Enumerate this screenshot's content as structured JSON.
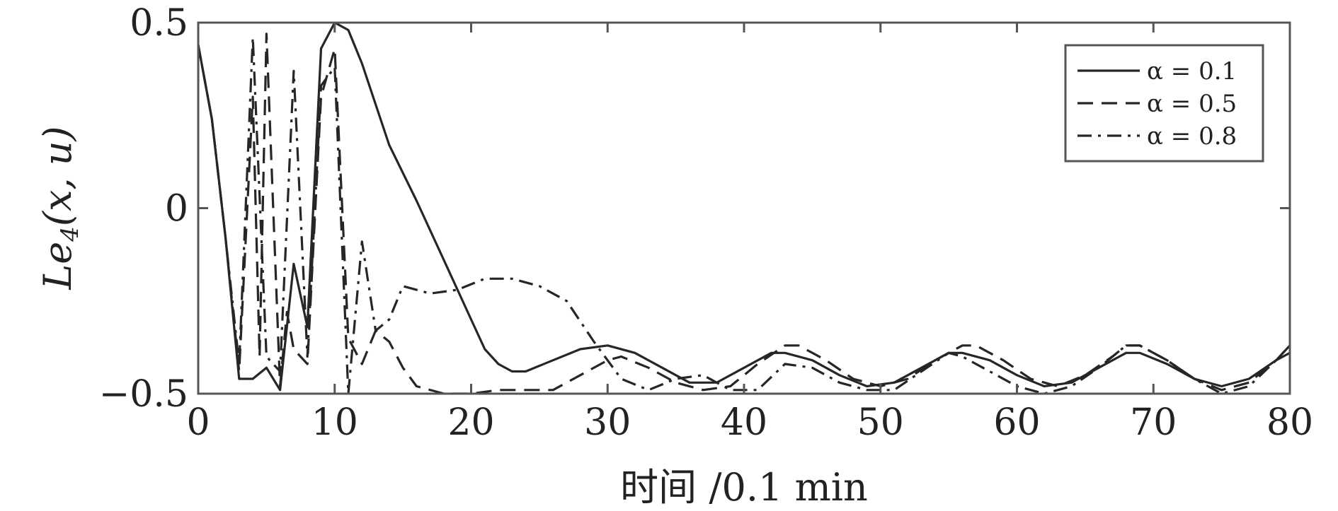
{
  "chart_data": {
    "type": "line",
    "xlabel": "时间 /0.1 min",
    "ylabel": "Le4(x, u)",
    "ylabel_parts": {
      "pre": "Le",
      "sub": "4",
      "args": "(x, u)"
    },
    "xlim": [
      0,
      80
    ],
    "ylim": [
      -0.5,
      0.5
    ],
    "x_ticks": [
      0,
      10,
      20,
      30,
      40,
      50,
      60,
      70,
      80
    ],
    "y_ticks": [
      -0.5,
      0,
      0.5
    ],
    "y_tick_labels": [
      "−0.5",
      "0",
      "0.5"
    ],
    "legend_position": "top-right",
    "grid": false,
    "series": [
      {
        "name": "α = 0.1",
        "dash": "solid",
        "points": [
          [
            0,
            0.44
          ],
          [
            1,
            0.24
          ],
          [
            2,
            -0.08
          ],
          [
            3,
            -0.46
          ],
          [
            4,
            -0.46
          ],
          [
            5,
            -0.43
          ],
          [
            6,
            -0.49
          ],
          [
            7,
            -0.15
          ],
          [
            8,
            -0.32
          ],
          [
            9,
            0.43
          ],
          [
            10,
            0.5
          ],
          [
            11,
            0.48
          ],
          [
            12,
            0.39
          ],
          [
            14,
            0.17
          ],
          [
            16,
            0.02
          ],
          [
            18,
            -0.14
          ],
          [
            20,
            -0.3
          ],
          [
            21,
            -0.38
          ],
          [
            22,
            -0.42
          ],
          [
            23,
            -0.44
          ],
          [
            24,
            -0.44
          ],
          [
            26,
            -0.41
          ],
          [
            28,
            -0.38
          ],
          [
            30,
            -0.37
          ],
          [
            32,
            -0.39
          ],
          [
            34,
            -0.43
          ],
          [
            36,
            -0.47
          ],
          [
            38,
            -0.47
          ],
          [
            40,
            -0.43
          ],
          [
            42,
            -0.39
          ],
          [
            43,
            -0.39
          ],
          [
            45,
            -0.41
          ],
          [
            47,
            -0.45
          ],
          [
            49,
            -0.48
          ],
          [
            51,
            -0.47
          ],
          [
            53,
            -0.43
          ],
          [
            55,
            -0.39
          ],
          [
            56,
            -0.39
          ],
          [
            58,
            -0.41
          ],
          [
            60,
            -0.45
          ],
          [
            62,
            -0.48
          ],
          [
            64,
            -0.47
          ],
          [
            66,
            -0.43
          ],
          [
            68,
            -0.39
          ],
          [
            69,
            -0.39
          ],
          [
            71,
            -0.42
          ],
          [
            73,
            -0.46
          ],
          [
            75,
            -0.48
          ],
          [
            77,
            -0.46
          ],
          [
            79,
            -0.41
          ],
          [
            80,
            -0.39
          ]
        ]
      },
      {
        "name": "α = 0.5",
        "dash": "dashed",
        "points": [
          [
            0,
            0.44
          ],
          [
            1,
            0.24
          ],
          [
            2,
            -0.08
          ],
          [
            3,
            -0.44
          ],
          [
            4,
            0.3
          ],
          [
            4.5,
            -0.4
          ],
          [
            5,
            0.47
          ],
          [
            6,
            -0.48
          ],
          [
            6.5,
            -0.28
          ],
          [
            7,
            -0.38
          ],
          [
            8,
            -0.42
          ],
          [
            9,
            0.3
          ],
          [
            10,
            0.43
          ],
          [
            11,
            -0.35
          ],
          [
            12,
            -0.42
          ],
          [
            13,
            -0.33
          ],
          [
            14,
            -0.36
          ],
          [
            15,
            -0.43
          ],
          [
            16,
            -0.48
          ],
          [
            18,
            -0.5
          ],
          [
            20,
            -0.5
          ],
          [
            22,
            -0.49
          ],
          [
            24,
            -0.49
          ],
          [
            26,
            -0.49
          ],
          [
            28,
            -0.45
          ],
          [
            30,
            -0.41
          ],
          [
            31,
            -0.4
          ],
          [
            33,
            -0.43
          ],
          [
            35,
            -0.47
          ],
          [
            37,
            -0.49
          ],
          [
            39,
            -0.48
          ],
          [
            41,
            -0.42
          ],
          [
            43,
            -0.37
          ],
          [
            44,
            -0.37
          ],
          [
            46,
            -0.41
          ],
          [
            48,
            -0.46
          ],
          [
            50,
            -0.48
          ],
          [
            52,
            -0.46
          ],
          [
            54,
            -0.41
          ],
          [
            56,
            -0.37
          ],
          [
            57,
            -0.37
          ],
          [
            59,
            -0.41
          ],
          [
            61,
            -0.46
          ],
          [
            63,
            -0.48
          ],
          [
            65,
            -0.45
          ],
          [
            67,
            -0.4
          ],
          [
            68,
            -0.37
          ],
          [
            69,
            -0.37
          ],
          [
            71,
            -0.41
          ],
          [
            73,
            -0.46
          ],
          [
            75,
            -0.49
          ],
          [
            77,
            -0.47
          ],
          [
            79,
            -0.41
          ],
          [
            80,
            -0.37
          ]
        ]
      },
      {
        "name": "α = 0.8",
        "dash": "dashdot",
        "points": [
          [
            0,
            0.44
          ],
          [
            1,
            0.24
          ],
          [
            2,
            -0.08
          ],
          [
            3,
            -0.42
          ],
          [
            4,
            0.46
          ],
          [
            5,
            -0.4
          ],
          [
            6,
            -0.44
          ],
          [
            7,
            0.37
          ],
          [
            8,
            -0.4
          ],
          [
            9,
            0.33
          ],
          [
            10,
            0.38
          ],
          [
            11,
            -0.5
          ],
          [
            12,
            -0.09
          ],
          [
            13,
            -0.33
          ],
          [
            14,
            -0.3
          ],
          [
            15,
            -0.21
          ],
          [
            17,
            -0.23
          ],
          [
            19,
            -0.22
          ],
          [
            21,
            -0.19
          ],
          [
            23,
            -0.19
          ],
          [
            25,
            -0.21
          ],
          [
            27,
            -0.25
          ],
          [
            29,
            -0.36
          ],
          [
            31,
            -0.46
          ],
          [
            33,
            -0.49
          ],
          [
            35,
            -0.46
          ],
          [
            37,
            -0.45
          ],
          [
            39,
            -0.49
          ],
          [
            41,
            -0.49
          ],
          [
            43,
            -0.42
          ],
          [
            45,
            -0.43
          ],
          [
            47,
            -0.47
          ],
          [
            49,
            -0.49
          ],
          [
            51,
            -0.49
          ],
          [
            53,
            -0.44
          ],
          [
            55,
            -0.39
          ],
          [
            56,
            -0.4
          ],
          [
            58,
            -0.44
          ],
          [
            60,
            -0.48
          ],
          [
            62,
            -0.5
          ],
          [
            64,
            -0.48
          ],
          [
            66,
            -0.43
          ],
          [
            68,
            -0.37
          ],
          [
            69,
            -0.37
          ],
          [
            71,
            -0.41
          ],
          [
            73,
            -0.46
          ],
          [
            75,
            -0.5
          ],
          [
            77,
            -0.48
          ],
          [
            79,
            -0.41
          ],
          [
            80,
            -0.37
          ]
        ]
      }
    ]
  }
}
